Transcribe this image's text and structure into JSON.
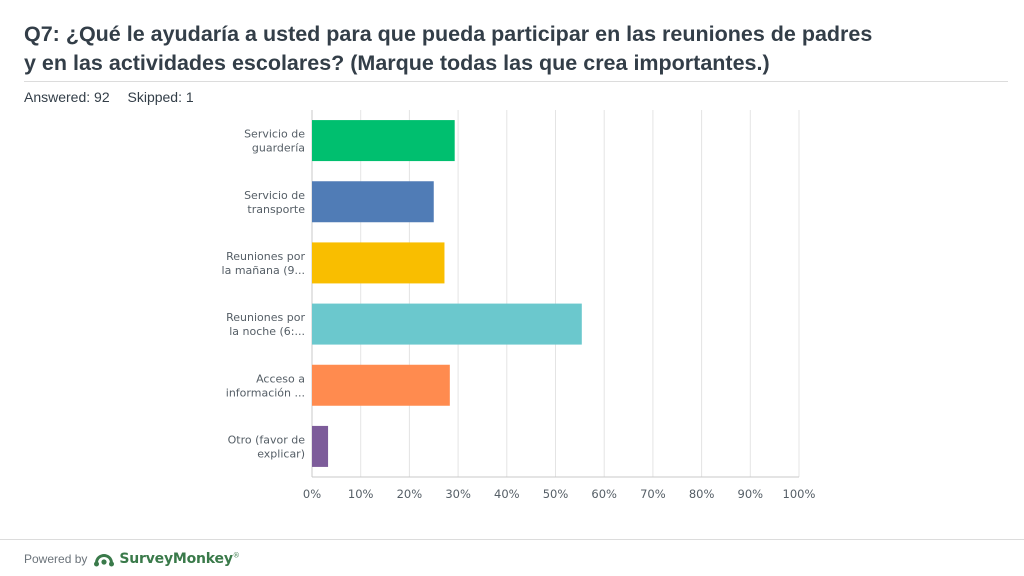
{
  "question": {
    "line1": "Q7: ¿Qué le ayudaría a usted para que pueda participar en las reuniones de padres",
    "line2": "y en las actividades escolares? (Marque todas las que crea importantes.)"
  },
  "stats": {
    "answered": "Answered: 92",
    "skipped": "Skipped: 1"
  },
  "chart_data": {
    "type": "bar",
    "orientation": "horizontal",
    "categories": [
      [
        "Servicio de",
        "guardería"
      ],
      [
        "Servicio de",
        "transporte"
      ],
      [
        "Reuniones por",
        "la mañana (9..."
      ],
      [
        "Reuniones por",
        "la noche (6:..."
      ],
      [
        "Acceso a",
        "información ..."
      ],
      [
        "Otro (favor de",
        "explicar)"
      ]
    ],
    "values": [
      29.3,
      25.0,
      27.2,
      55.4,
      28.3,
      3.3
    ],
    "colors": [
      "#00bf6f",
      "#507cb6",
      "#f9be00",
      "#6bc8cd",
      "#ff8b4f",
      "#7d5c9a"
    ],
    "xlim": [
      0,
      100
    ],
    "ticks": [
      "0%",
      "10%",
      "20%",
      "30%",
      "40%",
      "50%",
      "60%",
      "70%",
      "80%",
      "90%",
      "100%"
    ],
    "grid": true,
    "title": "",
    "xlabel": "",
    "ylabel": ""
  },
  "footer": {
    "powered_by": "Powered by",
    "brand": "SurveyMonkey",
    "brand_mark": "®",
    "brand_color": "#3a7a4a"
  }
}
